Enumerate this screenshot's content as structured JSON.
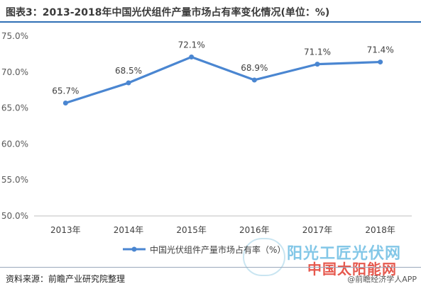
{
  "header": {
    "title": "图表3：2013-2018年中国光伏组件产量市场占有率变化情况(单位：%)"
  },
  "footer": {
    "source": "资料来源：前瞻产业研究院整理"
  },
  "watermarks": {
    "credit": "@前瞻经济学人APP",
    "brand_top": "阳光工匠光伏网",
    "brand_bottom": "中国太阳能网"
  },
  "chart_data": {
    "type": "line",
    "title": "图表3：2013-2018年中国光伏组件产量市场占有率变化情况(单位：%)",
    "categories": [
      "2013年",
      "2014年",
      "2015年",
      "2016年",
      "2017年",
      "2018年"
    ],
    "series": [
      {
        "name": "中国光伏组件产量市场占有率（%）",
        "values": [
          65.7,
          68.5,
          72.1,
          68.9,
          71.1,
          71.4
        ],
        "color": "#4a86d1"
      }
    ],
    "data_labels": [
      "65.7%",
      "68.5%",
      "72.1%",
      "68.9%",
      "71.1%",
      "71.4%"
    ],
    "ylim": [
      50,
      75
    ],
    "yticks": [
      50,
      55,
      60,
      65,
      70,
      75
    ],
    "ytick_labels": [
      "50.0%",
      "55.0%",
      "60.0%",
      "65.0%",
      "70.0%",
      "75.0%"
    ],
    "xlabel": "",
    "ylabel": "",
    "grid": false,
    "legend_position": "bottom-center"
  }
}
